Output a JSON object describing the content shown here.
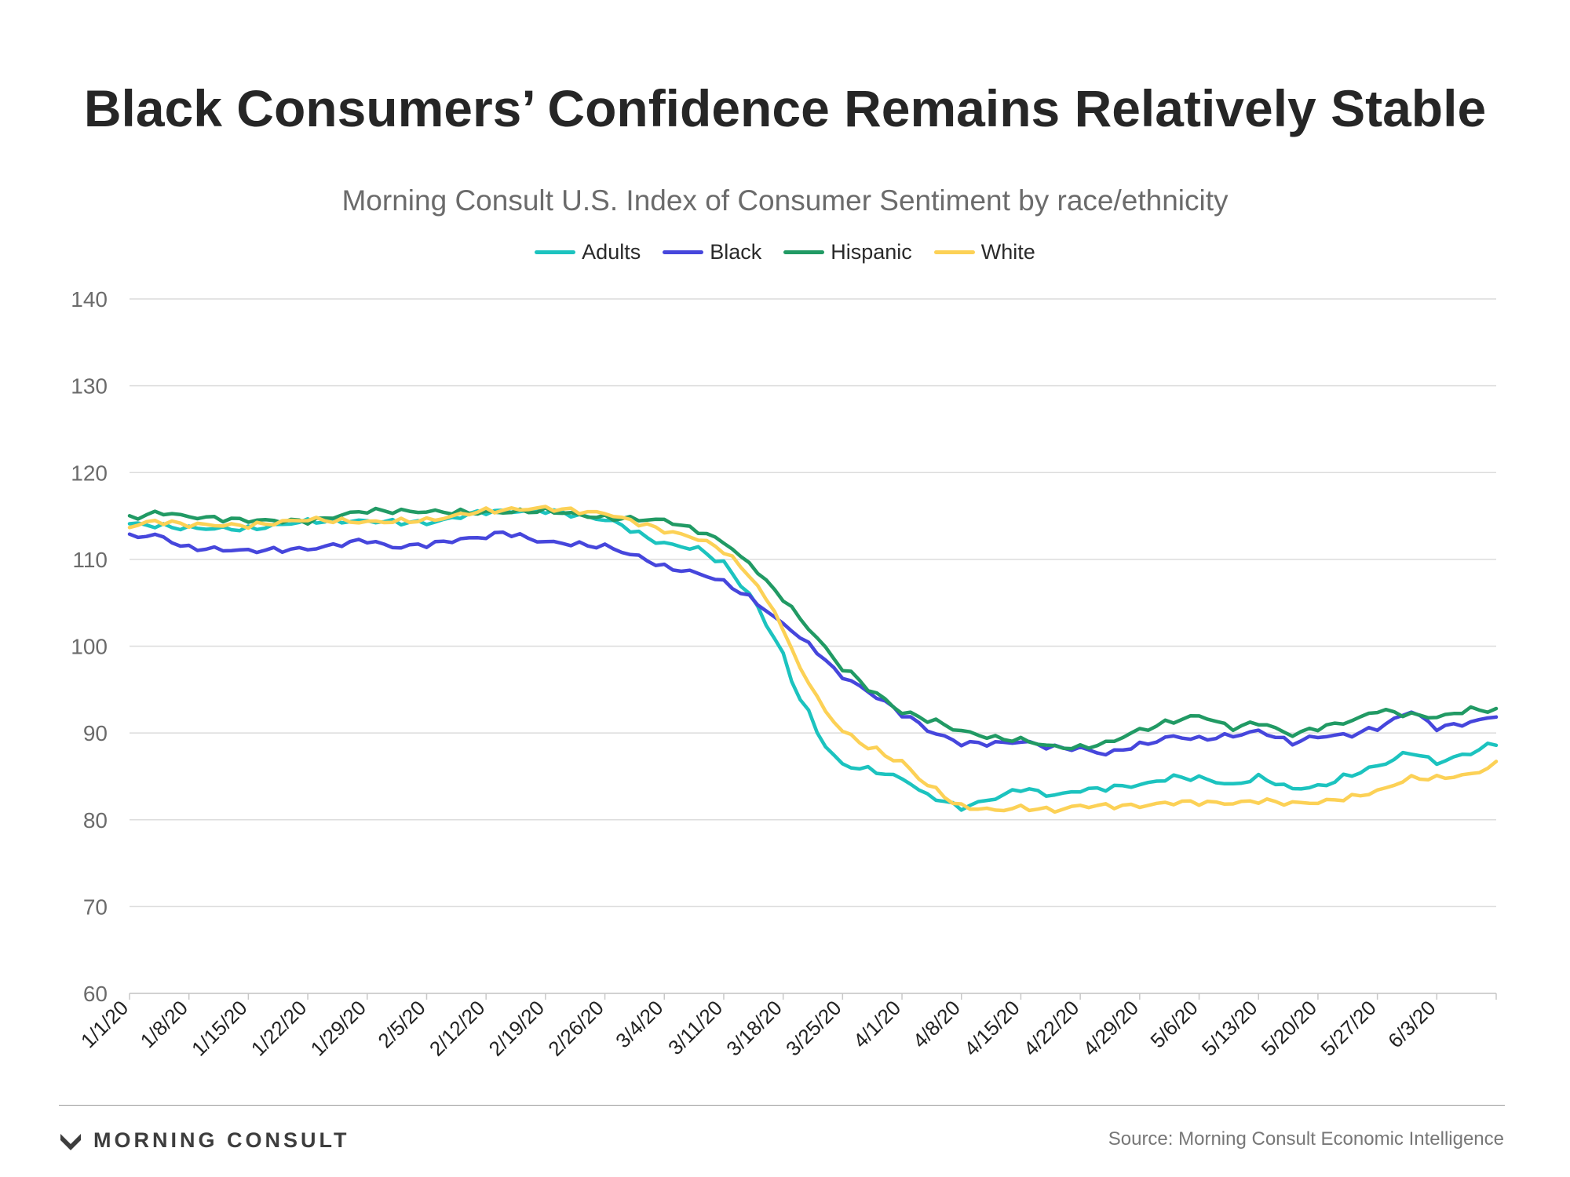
{
  "header": {
    "title": "Black Consumers’ Confidence Remains Relatively Stable",
    "subtitle": "Morning Consult U.S. Index of Consumer Sentiment by race/ethnicity"
  },
  "footer": {
    "brand": "MORNING CONSULT",
    "brand_icon": "morning-consult-chevron-logo-icon",
    "source": "Source: Morning Consult Economic Intelligence"
  },
  "colors": {
    "Adults": "#1cc3bf",
    "Black": "#4646dc",
    "Hispanic": "#219a64",
    "White": "#fcd156",
    "grid": "#dcdcdc",
    "axis_text": "#6b6b6b"
  },
  "chart_data": {
    "type": "line",
    "grid": "horizontal",
    "legend_position": "top-center",
    "x_range": [
      "1/1/20",
      "6/10/20"
    ],
    "ylim": [
      60,
      140
    ],
    "yticks": [
      60,
      70,
      80,
      90,
      100,
      110,
      120,
      130,
      140
    ],
    "xticks": [
      "1/1/20",
      "1/8/20",
      "1/15/20",
      "1/22/20",
      "1/29/20",
      "2/5/20",
      "2/12/20",
      "2/19/20",
      "2/26/20",
      "3/4/20",
      "3/11/20",
      "3/18/20",
      "3/25/20",
      "4/1/20",
      "4/8/20",
      "4/15/20",
      "4/22/20",
      "4/29/20",
      "5/6/20",
      "5/13/20",
      "5/20/20",
      "5/27/20",
      "6/3/20"
    ],
    "series": [
      {
        "name": "Adults",
        "points": [
          [
            "1/1/20",
            114.1
          ],
          [
            "1/8/20",
            113.6
          ],
          [
            "1/15/20",
            113.5
          ],
          [
            "1/22/20",
            114.4
          ],
          [
            "1/29/20",
            114.4
          ],
          [
            "2/5/20",
            114.2
          ],
          [
            "2/12/20",
            115.5
          ],
          [
            "2/19/20",
            115.6
          ],
          [
            "2/26/20",
            114.6
          ],
          [
            "3/4/20",
            111.8
          ],
          [
            "3/8/20",
            111.2
          ],
          [
            "3/11/20",
            109.5
          ],
          [
            "3/14/20",
            106.0
          ],
          [
            "3/17/20",
            101.0
          ],
          [
            "3/20/20",
            94.0
          ],
          [
            "3/23/20",
            88.5
          ],
          [
            "3/25/20",
            86.3
          ],
          [
            "3/28/20",
            85.8
          ],
          [
            "4/1/20",
            84.8
          ],
          [
            "4/4/20",
            82.8
          ],
          [
            "4/8/20",
            81.4
          ],
          [
            "4/12/20",
            82.5
          ],
          [
            "4/15/20",
            83.6
          ],
          [
            "4/19/20",
            82.8
          ],
          [
            "4/22/20",
            83.4
          ],
          [
            "4/29/20",
            84.0
          ],
          [
            "5/3/20",
            84.9
          ],
          [
            "5/6/20",
            84.8
          ],
          [
            "5/10/20",
            84.0
          ],
          [
            "5/13/20",
            84.9
          ],
          [
            "5/17/20",
            83.6
          ],
          [
            "5/20/20",
            83.8
          ],
          [
            "5/24/20",
            85.2
          ],
          [
            "5/27/20",
            86.2
          ],
          [
            "5/31/20",
            87.8
          ],
          [
            "6/3/20",
            86.6
          ],
          [
            "6/7/20",
            87.7
          ],
          [
            "6/10/20",
            88.9
          ]
        ]
      },
      {
        "name": "Black",
        "points": [
          [
            "1/1/20",
            112.6
          ],
          [
            "1/4/20",
            112.8
          ],
          [
            "1/8/20",
            111.3
          ],
          [
            "1/15/20",
            111.0
          ],
          [
            "1/22/20",
            111.2
          ],
          [
            "1/29/20",
            112.2
          ],
          [
            "2/1/20",
            111.4
          ],
          [
            "2/5/20",
            111.7
          ],
          [
            "2/9/20",
            112.3
          ],
          [
            "2/12/20",
            112.6
          ],
          [
            "2/14/20",
            113.1
          ],
          [
            "2/19/20",
            112.0
          ],
          [
            "2/26/20",
            111.5
          ],
          [
            "3/1/20",
            110.3
          ],
          [
            "3/4/20",
            109.1
          ],
          [
            "3/8/20",
            108.4
          ],
          [
            "3/11/20",
            107.4
          ],
          [
            "3/14/20",
            105.6
          ],
          [
            "3/18/20",
            102.6
          ],
          [
            "3/21/20",
            100.2
          ],
          [
            "3/25/20",
            96.5
          ],
          [
            "3/29/20",
            94.2
          ],
          [
            "4/1/20",
            92.2
          ],
          [
            "4/5/20",
            89.9
          ],
          [
            "4/8/20",
            88.8
          ],
          [
            "4/12/20",
            88.8
          ],
          [
            "4/15/20",
            89.0
          ],
          [
            "4/19/20",
            88.3
          ],
          [
            "4/22/20",
            88.2
          ],
          [
            "4/25/20",
            87.6
          ],
          [
            "4/29/20",
            88.6
          ],
          [
            "5/3/20",
            89.6
          ],
          [
            "5/6/20",
            89.3
          ],
          [
            "5/10/20",
            89.7
          ],
          [
            "5/13/20",
            90.2
          ],
          [
            "5/17/20",
            88.9
          ],
          [
            "5/20/20",
            89.6
          ],
          [
            "5/24/20",
            89.8
          ],
          [
            "5/27/20",
            90.6
          ],
          [
            "5/31/20",
            92.5
          ],
          [
            "6/3/20",
            90.6
          ],
          [
            "6/7/20",
            91.2
          ],
          [
            "6/10/20",
            92.0
          ]
        ]
      },
      {
        "name": "Hispanic",
        "points": [
          [
            "1/1/20",
            114.8
          ],
          [
            "1/5/20",
            115.4
          ],
          [
            "1/8/20",
            114.9
          ],
          [
            "1/15/20",
            114.5
          ],
          [
            "1/22/20",
            114.4
          ],
          [
            "1/29/20",
            115.6
          ],
          [
            "2/5/20",
            115.5
          ],
          [
            "2/12/20",
            115.4
          ],
          [
            "2/19/20",
            115.6
          ],
          [
            "2/26/20",
            114.8
          ],
          [
            "3/4/20",
            114.5
          ],
          [
            "3/8/20",
            113.3
          ],
          [
            "3/11/20",
            112.0
          ],
          [
            "3/14/20",
            109.5
          ],
          [
            "3/18/20",
            105.5
          ],
          [
            "3/21/20",
            102.0
          ],
          [
            "3/25/20",
            97.5
          ],
          [
            "3/29/20",
            94.5
          ],
          [
            "4/1/20",
            92.4
          ],
          [
            "4/5/20",
            91.3
          ],
          [
            "4/8/20",
            90.2
          ],
          [
            "4/12/20",
            89.4
          ],
          [
            "4/15/20",
            89.2
          ],
          [
            "4/19/20",
            88.4
          ],
          [
            "4/22/20",
            88.3
          ],
          [
            "4/25/20",
            88.8
          ],
          [
            "4/29/20",
            90.3
          ],
          [
            "5/3/20",
            91.4
          ],
          [
            "5/6/20",
            92.0
          ],
          [
            "5/10/20",
            90.6
          ],
          [
            "5/13/20",
            91.2
          ],
          [
            "5/17/20",
            89.8
          ],
          [
            "5/20/20",
            90.6
          ],
          [
            "5/24/20",
            91.4
          ],
          [
            "5/27/20",
            92.6
          ],
          [
            "5/31/20",
            92.1
          ],
          [
            "6/3/20",
            91.8
          ],
          [
            "6/7/20",
            92.7
          ],
          [
            "6/10/20",
            92.6
          ]
        ]
      },
      {
        "name": "White",
        "points": [
          [
            "1/1/20",
            113.8
          ],
          [
            "1/4/20",
            114.4
          ],
          [
            "1/8/20",
            114.0
          ],
          [
            "1/15/20",
            113.9
          ],
          [
            "1/22/20",
            114.6
          ],
          [
            "1/29/20",
            114.3
          ],
          [
            "2/5/20",
            114.5
          ],
          [
            "2/12/20",
            115.6
          ],
          [
            "2/19/20",
            115.9
          ],
          [
            "2/26/20",
            115.3
          ],
          [
            "3/1/20",
            114.2
          ],
          [
            "3/4/20",
            113.3
          ],
          [
            "3/8/20",
            112.4
          ],
          [
            "3/11/20",
            111.0
          ],
          [
            "3/14/20",
            108.2
          ],
          [
            "3/17/20",
            104.0
          ],
          [
            "3/20/20",
            97.5
          ],
          [
            "3/23/20",
            92.5
          ],
          [
            "3/25/20",
            90.2
          ],
          [
            "3/28/20",
            88.4
          ],
          [
            "4/1/20",
            86.6
          ],
          [
            "4/4/20",
            84.0
          ],
          [
            "4/8/20",
            81.5
          ],
          [
            "4/12/20",
            81.1
          ],
          [
            "4/15/20",
            81.4
          ],
          [
            "4/19/20",
            81.1
          ],
          [
            "4/22/20",
            81.6
          ],
          [
            "4/29/20",
            81.6
          ],
          [
            "5/3/20",
            82.0
          ],
          [
            "5/6/20",
            82.0
          ],
          [
            "5/10/20",
            81.9
          ],
          [
            "5/13/20",
            82.2
          ],
          [
            "5/17/20",
            81.9
          ],
          [
            "5/20/20",
            82.0
          ],
          [
            "5/24/20",
            82.6
          ],
          [
            "5/27/20",
            83.3
          ],
          [
            "5/31/20",
            84.8
          ],
          [
            "6/3/20",
            84.8
          ],
          [
            "6/7/20",
            85.2
          ],
          [
            "6/10/20",
            86.4
          ]
        ]
      }
    ]
  }
}
